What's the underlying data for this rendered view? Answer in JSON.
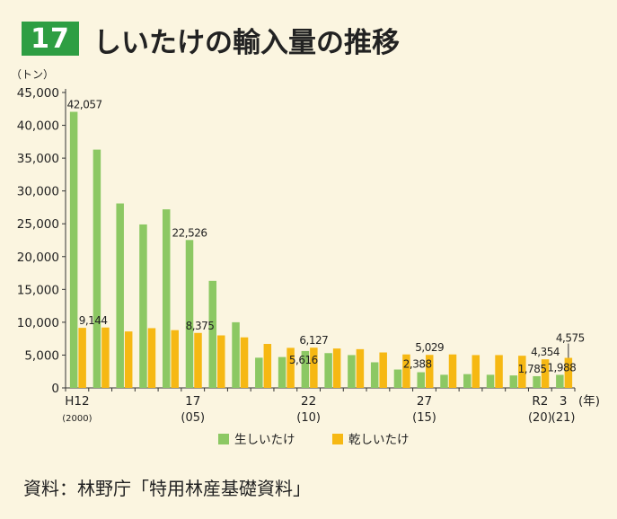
{
  "title": {
    "number": "17",
    "text": "しいたけの輸入量の推移"
  },
  "source": "資料：林野庁「特用林産基礎資料」",
  "chart_data": {
    "type": "bar",
    "y_unit_label": "（トン）",
    "x_unit_label": "(年)",
    "ylim": [
      0,
      45000
    ],
    "y_ticks": [
      "0",
      "5,000",
      "10,000",
      "15,000",
      "20,000",
      "25,000",
      "30,000",
      "35,000",
      "40,000",
      "45,000"
    ],
    "x_tick_labels": [
      {
        "index": 0,
        "line1": "H12",
        "line2": "(2000)"
      },
      {
        "index": 5,
        "line1": "17",
        "line2": "(05)"
      },
      {
        "index": 10,
        "line1": "22",
        "line2": "(10)"
      },
      {
        "index": 15,
        "line1": "27",
        "line2": "(15)"
      },
      {
        "index": 20,
        "line1": "R2",
        "line2": "(20)"
      },
      {
        "index": 21,
        "line1": "3",
        "line2": "(21)"
      }
    ],
    "categories": [
      "H12",
      "13",
      "14",
      "15",
      "16",
      "17",
      "18",
      "19",
      "20",
      "21",
      "22",
      "23",
      "24",
      "25",
      "26",
      "27",
      "28",
      "29",
      "30",
      "R1",
      "R2",
      "3"
    ],
    "series": [
      {
        "name": "生しいたけ",
        "color": "#8cc863",
        "values": [
          42057,
          36300,
          28100,
          24900,
          27200,
          22526,
          16300,
          10000,
          4600,
          4700,
          5616,
          5300,
          5000,
          3900,
          2800,
          2388,
          2000,
          2100,
          2000,
          1900,
          1785,
          1988
        ]
      },
      {
        "name": "乾しいたけ",
        "color": "#f6b813",
        "values": [
          9144,
          9200,
          8600,
          9100,
          8800,
          8375,
          8000,
          7700,
          6700,
          6100,
          6127,
          6000,
          5900,
          5400,
          5100,
          5029,
          5100,
          5000,
          5000,
          4900,
          4354,
          4575
        ]
      }
    ],
    "data_labels": [
      {
        "series": 0,
        "index": 0,
        "text": "42,057"
      },
      {
        "series": 1,
        "index": 0,
        "text": "9,144"
      },
      {
        "series": 0,
        "index": 5,
        "text": "22,526"
      },
      {
        "series": 1,
        "index": 5,
        "text": "8,375"
      },
      {
        "series": 0,
        "index": 10,
        "text": "5,616"
      },
      {
        "series": 1,
        "index": 10,
        "text": "6,127"
      },
      {
        "series": 0,
        "index": 15,
        "text": "2,388"
      },
      {
        "series": 1,
        "index": 15,
        "text": "5,029"
      },
      {
        "series": 0,
        "index": 20,
        "text": "1,785"
      },
      {
        "series": 1,
        "index": 20,
        "text": "4,354"
      },
      {
        "series": 0,
        "index": 21,
        "text": "1,988"
      },
      {
        "series": 1,
        "index": 21,
        "text": "4,575"
      }
    ],
    "legend_position": "bottom-center",
    "grid": false
  }
}
